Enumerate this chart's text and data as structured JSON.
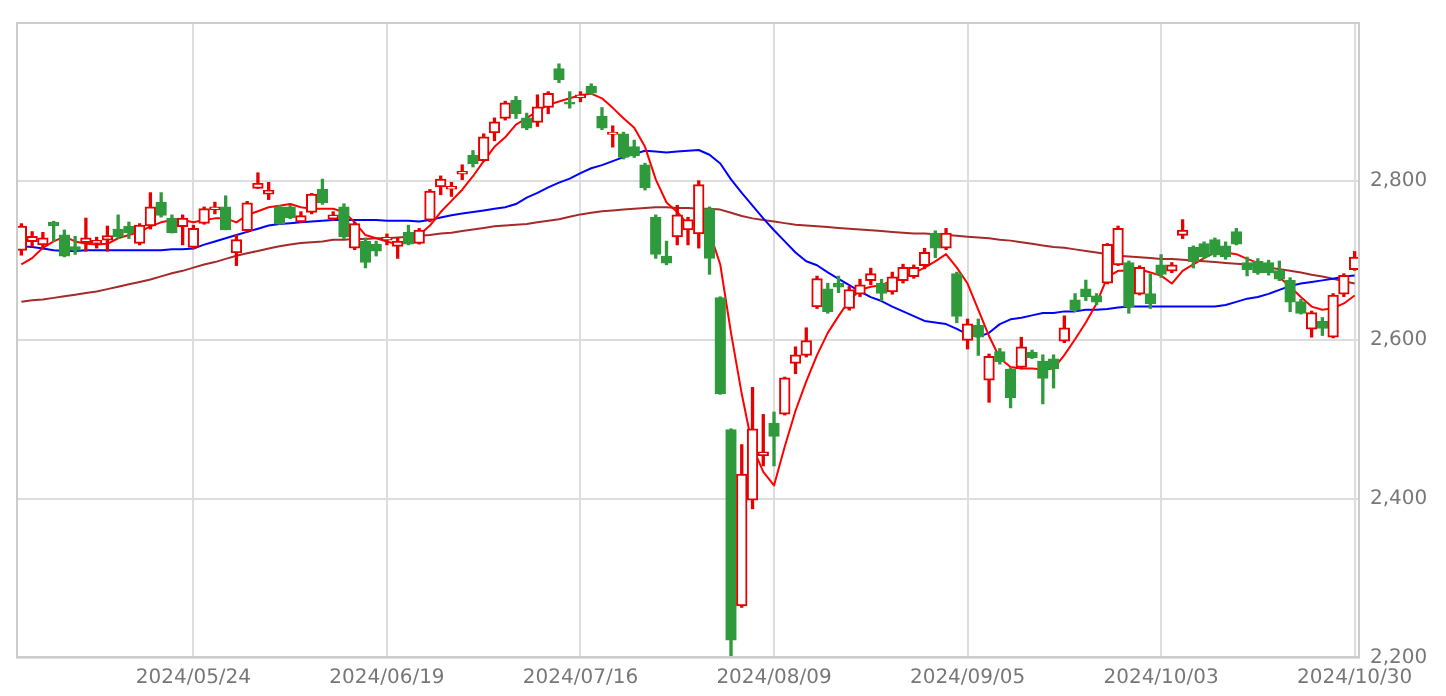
{
  "chart_data": {
    "type": "candlestick",
    "grid": true,
    "categories": [
      null,
      null,
      null,
      null,
      null,
      null,
      null,
      null,
      null,
      null,
      null,
      null,
      null,
      null,
      null,
      null,
      "2024/05/24",
      null,
      null,
      null,
      null,
      null,
      null,
      null,
      null,
      null,
      null,
      null,
      null,
      null,
      null,
      null,
      null,
      null,
      "2024/06/19",
      null,
      null,
      null,
      null,
      null,
      null,
      null,
      null,
      null,
      null,
      null,
      null,
      null,
      null,
      null,
      null,
      null,
      "2024/07/16",
      null,
      null,
      null,
      null,
      null,
      null,
      null,
      null,
      null,
      null,
      null,
      null,
      null,
      null,
      null,
      null,
      null,
      "2024/08/09",
      null,
      null,
      null,
      null,
      null,
      null,
      null,
      null,
      null,
      null,
      null,
      null,
      null,
      null,
      null,
      null,
      null,
      "2024/09/05",
      null,
      null,
      null,
      null,
      null,
      null,
      null,
      null,
      null,
      null,
      null,
      null,
      null,
      null,
      null,
      null,
      null,
      "2024/10/03",
      null,
      null,
      null,
      null,
      null,
      null,
      null,
      null,
      null,
      null,
      null,
      null,
      null,
      null,
      null,
      null,
      null,
      "2024/10/30"
    ],
    "ohlc": [
      [
        2713,
        2746,
        2707,
        2743
      ],
      [
        2724,
        2736,
        2718,
        2730
      ],
      [
        2720,
        2735,
        2716,
        2728
      ],
      [
        2748,
        2749,
        2724,
        2744
      ],
      [
        2732,
        2738,
        2705,
        2706
      ],
      [
        2717,
        2730,
        2708,
        2713
      ],
      [
        2723,
        2753,
        2712,
        2728
      ],
      [
        2722,
        2729,
        2716,
        2725
      ],
      [
        2726,
        2743,
        2712,
        2731
      ],
      [
        2739,
        2757,
        2728,
        2730
      ],
      [
        2743,
        2748,
        2728,
        2735
      ],
      [
        2722,
        2746,
        2720,
        2744
      ],
      [
        2744,
        2785,
        2740,
        2767
      ],
      [
        2773,
        2785,
        2755,
        2757
      ],
      [
        2753,
        2757,
        2735,
        2735
      ],
      [
        2743,
        2757,
        2720,
        2753
      ],
      [
        2717,
        2744,
        2715,
        2740
      ],
      [
        2747,
        2767,
        2746,
        2765
      ],
      [
        2764,
        2773,
        2759,
        2767
      ],
      [
        2767,
        2781,
        2739,
        2739
      ],
      [
        2710,
        2732,
        2694,
        2726
      ],
      [
        2738,
        2774,
        2736,
        2772
      ],
      [
        2791,
        2810,
        2791,
        2797
      ],
      [
        2784,
        2798,
        2777,
        2788
      ],
      [
        2767,
        2769,
        2746,
        2746
      ],
      [
        2767,
        2769,
        2753,
        2754
      ],
      [
        2749,
        2761,
        2748,
        2756
      ],
      [
        2761,
        2784,
        2759,
        2783
      ],
      [
        2789,
        2802,
        2771,
        2773
      ],
      [
        2753,
        2761,
        2751,
        2757
      ],
      [
        2767,
        2771,
        2728,
        2730
      ],
      [
        2716,
        2748,
        2714,
        2746
      ],
      [
        2724,
        2728,
        2691,
        2698
      ],
      [
        2720,
        2724,
        2706,
        2712
      ],
      [
        2726,
        2733,
        2720,
        2729
      ],
      [
        2718,
        2728,
        2703,
        2724
      ],
      [
        2735,
        2744,
        2720,
        2721
      ],
      [
        2722,
        2740,
        2721,
        2738
      ],
      [
        2751,
        2789,
        2749,
        2787
      ],
      [
        2793,
        2806,
        2783,
        2802
      ],
      [
        2790,
        2798,
        2781,
        2793
      ],
      [
        2809,
        2820,
        2802,
        2812
      ],
      [
        2832,
        2838,
        2818,
        2822
      ],
      [
        2826,
        2859,
        2825,
        2855
      ],
      [
        2861,
        2879,
        2851,
        2874
      ],
      [
        2879,
        2900,
        2877,
        2898
      ],
      [
        2901,
        2906,
        2879,
        2885
      ],
      [
        2879,
        2885,
        2865,
        2867
      ],
      [
        2874,
        2908,
        2869,
        2893
      ],
      [
        2893,
        2912,
        2885,
        2910
      ],
      [
        2941,
        2947,
        2924,
        2928
      ],
      [
        2899,
        2912,
        2892,
        2897
      ],
      [
        2905,
        2912,
        2900,
        2908
      ],
      [
        2919,
        2922,
        2909,
        2911
      ],
      [
        2881,
        2892,
        2865,
        2867
      ],
      [
        2859,
        2869,
        2843,
        2861
      ],
      [
        2859,
        2861,
        2828,
        2830
      ],
      [
        2843,
        2851,
        2830,
        2832
      ],
      [
        2820,
        2822,
        2789,
        2792
      ],
      [
        2754,
        2757,
        2703,
        2708
      ],
      [
        2705,
        2724,
        2695,
        2697
      ],
      [
        2730,
        2769,
        2720,
        2757
      ],
      [
        2739,
        2754,
        2720,
        2751
      ],
      [
        2734,
        2800,
        2716,
        2795
      ],
      [
        2765,
        2767,
        2683,
        2703
      ],
      [
        2653,
        2654,
        2532,
        2533
      ],
      [
        2487,
        2488,
        2203,
        2223
      ],
      [
        2266,
        2468,
        2264,
        2431
      ],
      [
        2399,
        2540,
        2388,
        2488
      ],
      [
        2455,
        2506,
        2442,
        2459
      ],
      [
        2495,
        2509,
        2442,
        2479
      ],
      [
        2507,
        2553,
        2506,
        2552
      ],
      [
        2571,
        2591,
        2558,
        2581
      ],
      [
        2581,
        2615,
        2579,
        2599
      ],
      [
        2642,
        2680,
        2640,
        2677
      ],
      [
        2664,
        2671,
        2634,
        2636
      ],
      [
        2671,
        2680,
        2660,
        2667
      ],
      [
        2640,
        2667,
        2638,
        2663
      ],
      [
        2658,
        2676,
        2655,
        2669
      ],
      [
        2675,
        2690,
        2670,
        2683
      ],
      [
        2671,
        2676,
        2650,
        2659
      ],
      [
        2661,
        2685,
        2658,
        2679
      ],
      [
        2675,
        2695,
        2672,
        2691
      ],
      [
        2680,
        2694,
        2678,
        2691
      ],
      [
        2694,
        2715,
        2690,
        2710
      ],
      [
        2734,
        2737,
        2704,
        2716
      ],
      [
        2716,
        2740,
        2714,
        2734
      ],
      [
        2683,
        2685,
        2622,
        2630
      ],
      [
        2600,
        2626,
        2589,
        2620
      ],
      [
        2618,
        2626,
        2581,
        2604
      ],
      [
        2550,
        2582,
        2522,
        2579
      ],
      [
        2585,
        2589,
        2570,
        2573
      ],
      [
        2563,
        2565,
        2515,
        2528
      ],
      [
        2566,
        2603,
        2564,
        2591
      ],
      [
        2584,
        2587,
        2577,
        2578
      ],
      [
        2573,
        2581,
        2520,
        2552
      ],
      [
        2576,
        2581,
        2540,
        2564
      ],
      [
        2599,
        2630,
        2597,
        2615
      ],
      [
        2650,
        2658,
        2636,
        2638
      ],
      [
        2664,
        2675,
        2650,
        2655
      ],
      [
        2655,
        2658,
        2645,
        2648
      ],
      [
        2672,
        2721,
        2671,
        2720
      ],
      [
        2695,
        2743,
        2694,
        2740
      ],
      [
        2697,
        2699,
        2634,
        2642
      ],
      [
        2658,
        2693,
        2657,
        2691
      ],
      [
        2658,
        2683,
        2640,
        2646
      ],
      [
        2694,
        2707,
        2679,
        2683
      ],
      [
        2687,
        2697,
        2685,
        2694
      ],
      [
        2732,
        2751,
        2728,
        2738
      ],
      [
        2716,
        2718,
        2691,
        2699
      ],
      [
        2721,
        2723,
        2703,
        2705
      ],
      [
        2726,
        2728,
        2705,
        2707
      ],
      [
        2718,
        2723,
        2702,
        2705
      ],
      [
        2736,
        2740,
        2720,
        2721
      ],
      [
        2697,
        2704,
        2681,
        2689
      ],
      [
        2699,
        2702,
        2683,
        2685
      ],
      [
        2697,
        2700,
        2682,
        2685
      ],
      [
        2687,
        2699,
        2675,
        2677
      ],
      [
        2675,
        2678,
        2636,
        2648
      ],
      [
        2648,
        2651,
        2633,
        2634
      ],
      [
        2614,
        2636,
        2604,
        2634
      ],
      [
        2623,
        2628,
        2606,
        2615
      ],
      [
        2604,
        2658,
        2603,
        2656
      ],
      [
        2658,
        2683,
        2655,
        2681
      ],
      [
        2689,
        2711,
        2688,
        2704
      ]
    ],
    "colors": [
      "#e60000",
      "#e60000",
      "#e60000",
      "#2f9a3c",
      "#2f9a3c",
      "#2f9a3c",
      "#e60000",
      "#e60000",
      "#e60000",
      "#2f9a3c",
      "#2f9a3c",
      "#e60000",
      "#e60000",
      "#2f9a3c",
      "#2f9a3c",
      "#e60000",
      "#e60000",
      "#e60000",
      "#e60000",
      "#2f9a3c",
      "#e60000",
      "#e60000",
      "#e60000",
      "#e60000",
      "#2f9a3c",
      "#2f9a3c",
      "#e60000",
      "#e60000",
      "#2f9a3c",
      "#e60000",
      "#2f9a3c",
      "#e60000",
      "#2f9a3c",
      "#2f9a3c",
      "#e60000",
      "#e60000",
      "#2f9a3c",
      "#e60000",
      "#e60000",
      "#e60000",
      "#e60000",
      "#e60000",
      "#2f9a3c",
      "#e60000",
      "#e60000",
      "#e60000",
      "#2f9a3c",
      "#2f9a3c",
      "#e60000",
      "#e60000",
      "#2f9a3c",
      "#2f9a3c",
      "#e60000",
      "#2f9a3c",
      "#2f9a3c",
      "#e60000",
      "#2f9a3c",
      "#2f9a3c",
      "#2f9a3c",
      "#2f9a3c",
      "#2f9a3c",
      "#e60000",
      "#e60000",
      "#e60000",
      "#2f9a3c",
      "#2f9a3c",
      "#2f9a3c",
      "#e60000",
      "#e60000",
      "#e60000",
      "#2f9a3c",
      "#e60000",
      "#e60000",
      "#e60000",
      "#e60000",
      "#2f9a3c",
      "#2f9a3c",
      "#e60000",
      "#e60000",
      "#e60000",
      "#2f9a3c",
      "#e60000",
      "#e60000",
      "#e60000",
      "#e60000",
      "#2f9a3c",
      "#e60000",
      "#2f9a3c",
      "#e60000",
      "#2f9a3c",
      "#e60000",
      "#2f9a3c",
      "#2f9a3c",
      "#e60000",
      "#2f9a3c",
      "#2f9a3c",
      "#2f9a3c",
      "#e60000",
      "#2f9a3c",
      "#2f9a3c",
      "#2f9a3c",
      "#e60000",
      "#e60000",
      "#2f9a3c",
      "#e60000",
      "#2f9a3c",
      "#2f9a3c",
      "#e60000",
      "#e60000",
      "#2f9a3c",
      "#2f9a3c",
      "#2f9a3c",
      "#2f9a3c",
      "#2f9a3c",
      "#2f9a3c",
      "#2f9a3c",
      "#2f9a3c",
      "#2f9a3c",
      "#2f9a3c",
      "#2f9a3c",
      "#e60000",
      "#2f9a3c",
      "#e60000",
      "#e60000",
      "#e60000"
    ],
    "series": [
      {
        "type": "line",
        "color": "#ff0000",
        "values": [
          2695,
          2703,
          2716,
          2724,
          2730,
          2724,
          2721,
          2720,
          2721,
          2728,
          2732,
          2736,
          2743,
          2748,
          2751,
          2751,
          2748,
          2751,
          2753,
          2753,
          2748,
          2757,
          2762,
          2767,
          2769,
          2771,
          2767,
          2765,
          2765,
          2765,
          2761,
          2748,
          2732,
          2728,
          2724,
          2720,
          2724,
          2732,
          2744,
          2761,
          2775,
          2789,
          2806,
          2825,
          2843,
          2855,
          2871,
          2879,
          2888,
          2896,
          2900,
          2904,
          2908,
          2910,
          2904,
          2892,
          2879,
          2867,
          2843,
          2802,
          2773,
          2761,
          2745,
          2748,
          2736,
          2695,
          2609,
          2532,
          2466,
          2434,
          2417,
          2466,
          2511,
          2548,
          2581,
          2609,
          2630,
          2650,
          2663,
          2667,
          2669,
          2675,
          2680,
          2684,
          2691,
          2699,
          2708,
          2691,
          2671,
          2638,
          2605,
          2577,
          2566,
          2564,
          2564,
          2563,
          2564,
          2581,
          2601,
          2622,
          2646,
          2679,
          2687,
          2687,
          2689,
          2685,
          2681,
          2671,
          2687,
          2695,
          2703,
          2710,
          2710,
          2708,
          2702,
          2697,
          2691,
          2679,
          2667,
          2654,
          2642,
          2638,
          2640,
          2646,
          2656
        ]
      },
      {
        "type": "line",
        "color": "#0000ff",
        "values": [
          2718,
          2717,
          2715,
          2713,
          2712,
          2712,
          2713,
          2713,
          2713,
          2713,
          2713,
          2713,
          2713,
          2713,
          2714,
          2714,
          2715,
          2720,
          2724,
          2728,
          2732,
          2736,
          2740,
          2744,
          2746,
          2747,
          2748,
          2749,
          2750,
          2751,
          2751,
          2751,
          2751,
          2751,
          2750,
          2750,
          2750,
          2749,
          2751,
          2754,
          2757,
          2759,
          2761,
          2763,
          2765,
          2767,
          2771,
          2779,
          2785,
          2792,
          2798,
          2803,
          2810,
          2816,
          2820,
          2825,
          2830,
          2834,
          2838,
          2837,
          2836,
          2837,
          2838,
          2839,
          2833,
          2822,
          2802,
          2785,
          2769,
          2753,
          2738,
          2724,
          2710,
          2699,
          2694,
          2685,
          2677,
          2669,
          2661,
          2654,
          2649,
          2642,
          2636,
          2630,
          2624,
          2622,
          2620,
          2614,
          2607,
          2604,
          2609,
          2620,
          2626,
          2628,
          2631,
          2634,
          2634,
          2636,
          2636,
          2638,
          2638,
          2639,
          2641,
          2642,
          2642,
          2642,
          2642,
          2642,
          2642,
          2642,
          2642,
          2642,
          2644,
          2648,
          2652,
          2654,
          2658,
          2663,
          2668,
          2671,
          2673,
          2675,
          2677,
          2680,
          2681
        ]
      },
      {
        "type": "line",
        "color": "#a52a2a",
        "values": [
          2648,
          2650,
          2651,
          2653,
          2655,
          2657,
          2659,
          2661,
          2664,
          2667,
          2670,
          2673,
          2676,
          2680,
          2684,
          2687,
          2691,
          2695,
          2698,
          2702,
          2706,
          2709,
          2712,
          2715,
          2718,
          2720,
          2722,
          2723,
          2724,
          2726,
          2726,
          2727,
          2727,
          2728,
          2728,
          2729,
          2730,
          2731,
          2732,
          2734,
          2735,
          2737,
          2739,
          2741,
          2743,
          2744,
          2745,
          2746,
          2748,
          2750,
          2752,
          2755,
          2758,
          2760,
          2762,
          2763,
          2764,
          2765,
          2766,
          2767,
          2767,
          2766,
          2766,
          2765,
          2765,
          2764,
          2760,
          2756,
          2753,
          2751,
          2749,
          2747,
          2745,
          2744,
          2743,
          2742,
          2741,
          2740,
          2739,
          2738,
          2737,
          2736,
          2735,
          2734,
          2734,
          2733,
          2732,
          2731,
          2730,
          2729,
          2728,
          2726,
          2725,
          2723,
          2721,
          2719,
          2717,
          2716,
          2714,
          2712,
          2710,
          2708,
          2706,
          2705,
          2704,
          2703,
          2702,
          2702,
          2701,
          2700,
          2699,
          2698,
          2697,
          2696,
          2695,
          2693,
          2691,
          2689,
          2687,
          2685,
          2682,
          2680,
          2677,
          2674,
          2671
        ]
      }
    ],
    "ylim": [
      2200,
      3000
    ],
    "yticks": [
      {
        "value": 2200,
        "label": "2,200"
      },
      {
        "value": 2400,
        "label": "2,400"
      },
      {
        "value": 2600,
        "label": "2,600"
      },
      {
        "value": 2800,
        "label": "2,800"
      }
    ]
  }
}
